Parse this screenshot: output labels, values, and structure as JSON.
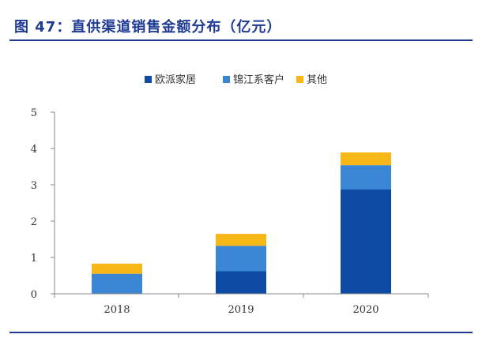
{
  "figure": {
    "title": "图 47：直供渠道销售金额分布（亿元）"
  },
  "chart_data": {
    "type": "bar",
    "stacked": true,
    "title": "",
    "xlabel": "",
    "ylabel": "",
    "categories": [
      "2018",
      "2019",
      "2020"
    ],
    "ylim": [
      0,
      5
    ],
    "yticks": [
      0,
      1,
      2,
      3,
      4,
      5
    ],
    "grid": false,
    "legend_position": "top",
    "series": [
      {
        "name": "欧派家居",
        "color": "#0d4aa3",
        "values": [
          0,
          0.62,
          2.87
        ]
      },
      {
        "name": "锦江系客户",
        "color": "#3a86d4",
        "values": [
          0.55,
          0.7,
          0.67
        ]
      },
      {
        "name": "其他",
        "color": "#f7b716",
        "values": [
          0.28,
          0.33,
          0.35
        ]
      }
    ]
  }
}
